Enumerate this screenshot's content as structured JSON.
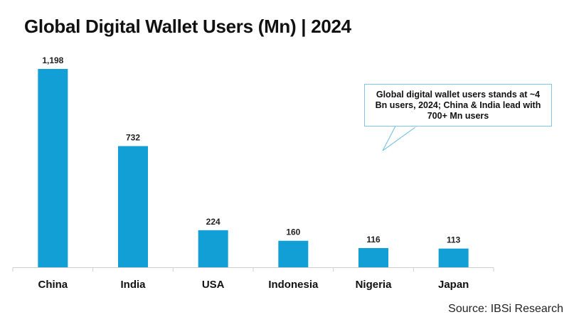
{
  "title": "Global Digital Wallet Users (Mn) | 2024",
  "source": "Source: IBSi Research",
  "annotation": "Global digital wallet users stands at ~4 Bn users, 2024; China & India lead with 700+ Mn users",
  "colors": {
    "bar": "#119fd6",
    "axis": "#cfcfcf",
    "callout_border": "#7ec6e6"
  },
  "chart_data": {
    "type": "bar",
    "title": "Global Digital Wallet Users (Mn) | 2024",
    "categories": [
      "China",
      "India",
      "USA",
      "Indonesia",
      "Nigeria",
      "Japan"
    ],
    "values": [
      1198,
      732,
      224,
      160,
      116,
      113
    ],
    "value_labels": [
      "1,198",
      "732",
      "224",
      "160",
      "116",
      "113"
    ],
    "xlabel": "",
    "ylabel": "",
    "ylim": [
      0,
      1198
    ],
    "grid": false,
    "legend": "none"
  }
}
